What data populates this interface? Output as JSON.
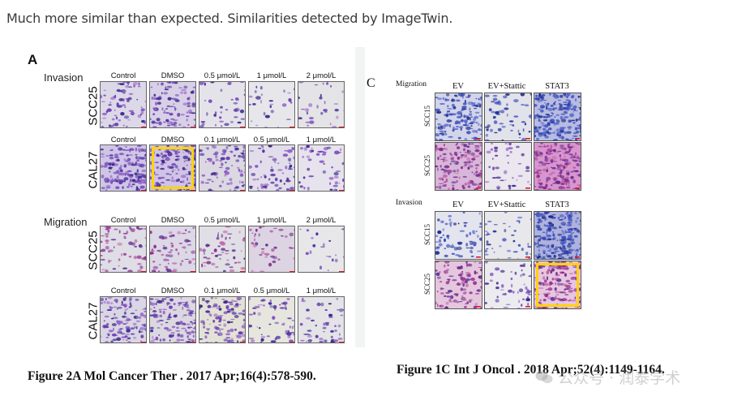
{
  "intro_text": "Much more similar than expected. Similarities detected by ImageTwin.",
  "figureA": {
    "panel_letter": "A",
    "invasion_label": "Invasion",
    "migration_label": "Migration",
    "headers_scc25": [
      "Control",
      "DMSO",
      "0.5 μmol/L",
      "1 μmol/L",
      "2 μmol/L"
    ],
    "headers_cal27": [
      "Control",
      "DMSO",
      "0.1 μmol/L",
      "0.5 μmol/L",
      "1 μmol/L"
    ],
    "row_scc25": "SCC25",
    "row_cal27": "CAL27",
    "caption": "Figure 2A Mol Cancer Ther . 2017 Apr;16(4):578-590."
  },
  "figureC": {
    "panel_letter": "C",
    "migration_label": "Migration",
    "invasion_label": "Invasion",
    "headers": [
      "EV",
      "EV+Stattic",
      "STAT3"
    ],
    "row_scc15": "SCC15",
    "row_scc25": "SCC25",
    "caption": "Figure 1C Int J Oncol . 2018 Apr;52(4):1149-1164."
  },
  "watermark": "公众号 · 润泰学术",
  "colors": {
    "highlight": "#ffd400",
    "stain_purple": "#5b3ea8",
    "stain_magenta": "#b0408f",
    "background_pale": "#eceaf2"
  }
}
